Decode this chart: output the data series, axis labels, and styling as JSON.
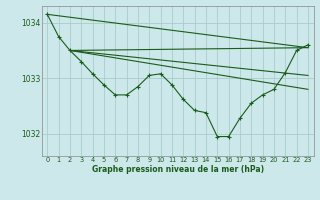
{
  "background_color": "#cce8ea",
  "grid_color": "#aacccc",
  "line_color": "#1a5c1a",
  "xlabel": "Graphe pression niveau de la mer (hPa)",
  "ylim": [
    1031.6,
    1034.3
  ],
  "xlim": [
    -0.5,
    23.5
  ],
  "yticks": [
    1032,
    1033,
    1034
  ],
  "xticks": [
    0,
    1,
    2,
    3,
    4,
    5,
    6,
    7,
    8,
    9,
    10,
    11,
    12,
    13,
    14,
    15,
    16,
    17,
    18,
    19,
    20,
    21,
    22,
    23
  ],
  "straight_lines": [
    {
      "x0": 0,
      "y0": 1034.15,
      "x1": 23,
      "y1": 1033.55
    },
    {
      "x0": 2,
      "y0": 1033.5,
      "x1": 23,
      "y1": 1033.55
    },
    {
      "x0": 2,
      "y0": 1033.5,
      "x1": 23,
      "y1": 1033.05
    },
    {
      "x0": 2,
      "y0": 1033.5,
      "x1": 23,
      "y1": 1032.8
    }
  ],
  "main_x": [
    0,
    1,
    2,
    3,
    4,
    5,
    6,
    7,
    8,
    9,
    10,
    11,
    12,
    13,
    14,
    15,
    16,
    17,
    18,
    19,
    20,
    21,
    22,
    23
  ],
  "main_y": [
    1034.15,
    1033.75,
    1033.5,
    1033.3,
    1033.08,
    1032.88,
    1032.7,
    1032.7,
    1032.85,
    1033.05,
    1033.08,
    1032.88,
    1032.62,
    1032.42,
    1032.38,
    1031.95,
    1031.95,
    1032.28,
    1032.55,
    1032.7,
    1032.8,
    1033.1,
    1033.5,
    1033.6
  ]
}
